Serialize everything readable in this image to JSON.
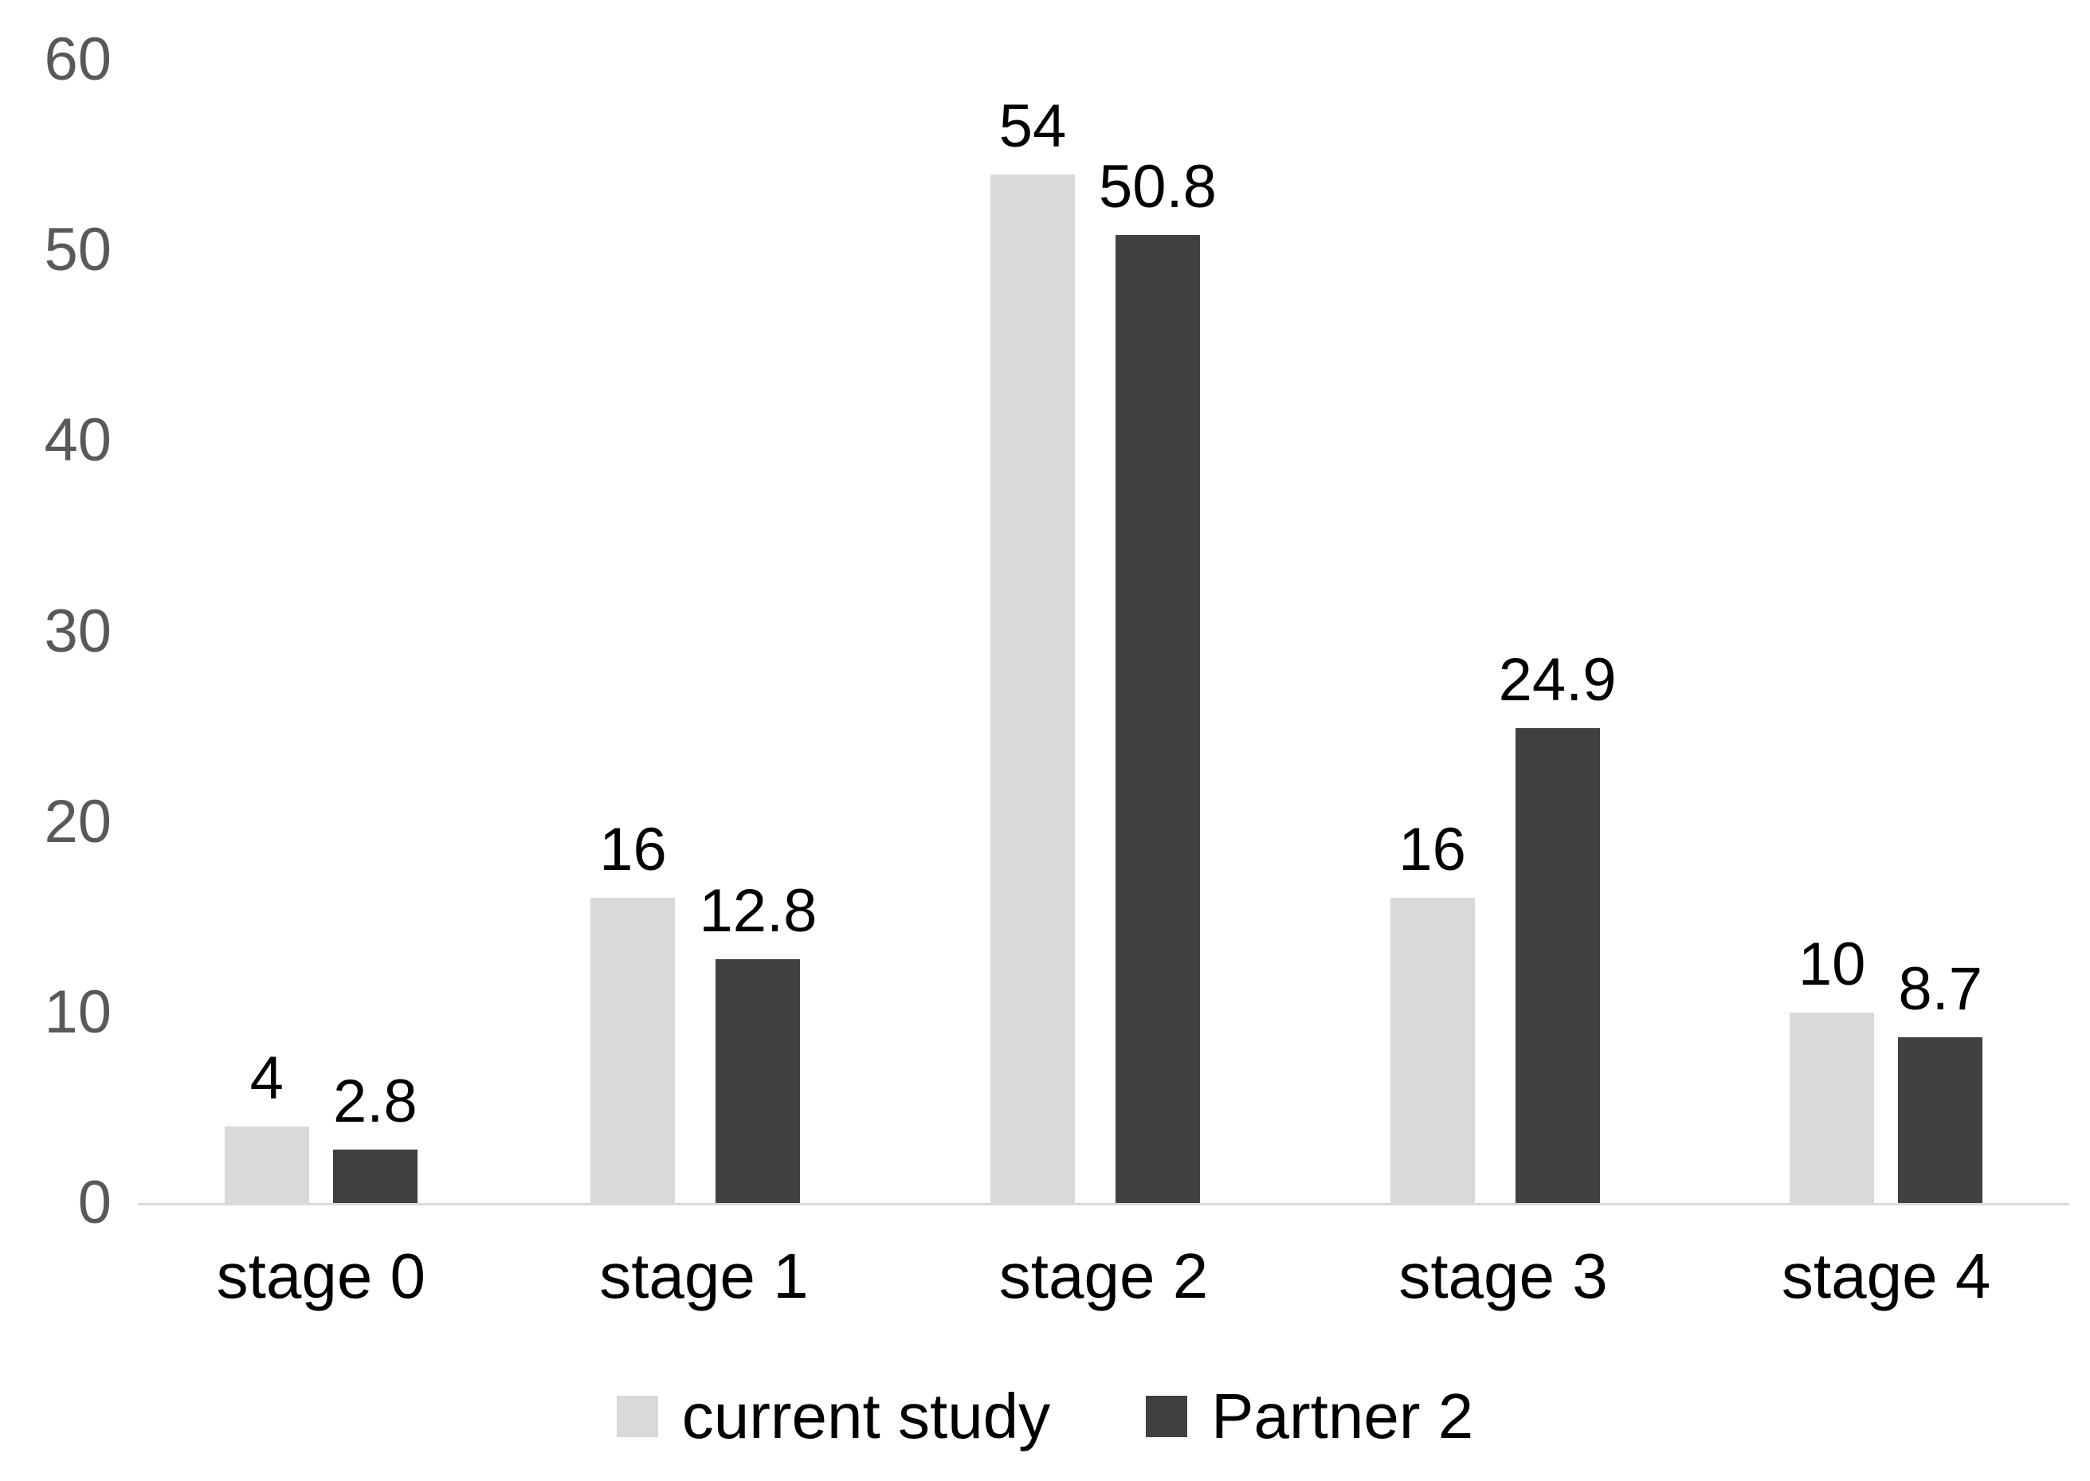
{
  "chart_data": {
    "type": "bar",
    "categories": [
      "stage 0",
      "stage 1",
      "stage 2",
      "stage 3",
      "stage 4"
    ],
    "series": [
      {
        "name": "current study",
        "color": "#d9d9d9",
        "values": [
          4,
          16,
          54,
          16,
          10
        ],
        "labels": [
          "4",
          "16",
          "54",
          "16",
          "10"
        ]
      },
      {
        "name": "Partner 2",
        "color": "#404040",
        "values": [
          2.8,
          12.8,
          50.8,
          24.9,
          8.7
        ],
        "labels": [
          "2.8",
          "12.8",
          "50.8",
          "24.9",
          "8.7"
        ]
      }
    ],
    "y_axis": {
      "min": 0,
      "max": 60,
      "step": 10,
      "ticks": [
        "0",
        "10",
        "20",
        "30",
        "40",
        "50",
        "60"
      ]
    },
    "legend": {
      "position": "bottom"
    },
    "grid": false,
    "colors": {
      "axis_line": "#d9d9d9",
      "tick_text": "#595959",
      "label_text": "#000000",
      "background": "#ffffff"
    }
  }
}
